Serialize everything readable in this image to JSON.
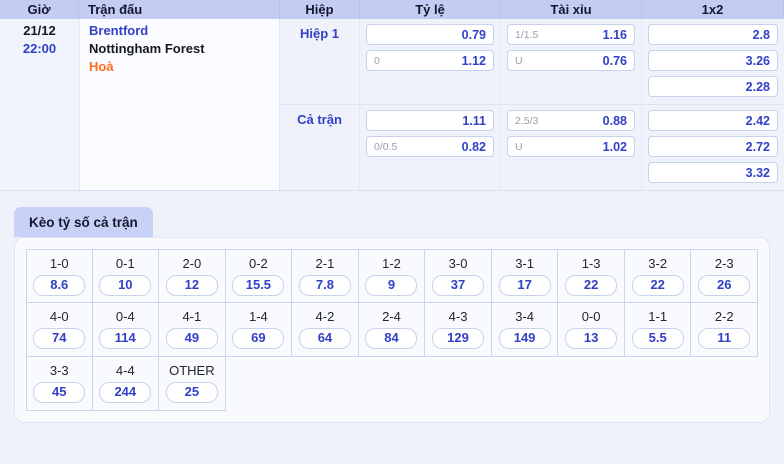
{
  "colors": {
    "header_bg": "#c3cdf4",
    "accent_blue": "#3140c6",
    "accent_orange": "#fc6c20",
    "line_gray": "#99a0ae",
    "page_bg": "#eef2fa",
    "tab_bg": "#c8d2f7"
  },
  "table": {
    "headers": {
      "time": "Giờ",
      "match": "Trận đấu",
      "period": "Hiệp",
      "handicap": "Tỷ lệ",
      "over_under": "Tài xỉu",
      "one_x_two": "1x2"
    },
    "row": {
      "date": "21/12",
      "time": "22:00",
      "home": "Brentford",
      "away": "Nottingham Forest",
      "draw": "Hoà",
      "sections": [
        {
          "label": "Hiệp 1",
          "handicap": [
            {
              "line": "",
              "odds": "0.79"
            },
            {
              "line": "0",
              "odds": "1.12"
            }
          ],
          "over_under": [
            {
              "line": "1/1.5",
              "odds": "1.16"
            },
            {
              "line": "U",
              "odds": "0.76"
            }
          ],
          "one_x_two": [
            "2.8",
            "3.26",
            "2.28"
          ]
        },
        {
          "label": "Cả trận",
          "handicap": [
            {
              "line": "",
              "odds": "1.11"
            },
            {
              "line": "0/0.5",
              "odds": "0.82"
            }
          ],
          "over_under": [
            {
              "line": "2.5/3",
              "odds": "0.88"
            },
            {
              "line": "U",
              "odds": "1.02"
            }
          ],
          "one_x_two": [
            "2.42",
            "2.72",
            "3.32"
          ]
        }
      ]
    }
  },
  "score_tab": {
    "label": "Kèo tỷ số cả trận"
  },
  "score_grid": {
    "cells": [
      {
        "score": "1-0",
        "odds": "8.6"
      },
      {
        "score": "0-1",
        "odds": "10"
      },
      {
        "score": "2-0",
        "odds": "12"
      },
      {
        "score": "0-2",
        "odds": "15.5"
      },
      {
        "score": "2-1",
        "odds": "7.8"
      },
      {
        "score": "1-2",
        "odds": "9"
      },
      {
        "score": "3-0",
        "odds": "37"
      },
      {
        "score": "3-1",
        "odds": "17"
      },
      {
        "score": "1-3",
        "odds": "22"
      },
      {
        "score": "3-2",
        "odds": "22"
      },
      {
        "score": "2-3",
        "odds": "26"
      },
      {
        "score": "4-0",
        "odds": "74"
      },
      {
        "score": "0-4",
        "odds": "114"
      },
      {
        "score": "4-1",
        "odds": "49"
      },
      {
        "score": "1-4",
        "odds": "69"
      },
      {
        "score": "4-2",
        "odds": "64"
      },
      {
        "score": "2-4",
        "odds": "84"
      },
      {
        "score": "4-3",
        "odds": "129"
      },
      {
        "score": "3-4",
        "odds": "149"
      },
      {
        "score": "0-0",
        "odds": "13"
      },
      {
        "score": "1-1",
        "odds": "5.5"
      },
      {
        "score": "2-2",
        "odds": "11"
      },
      {
        "score": "3-3",
        "odds": "45"
      },
      {
        "score": "4-4",
        "odds": "244"
      },
      {
        "score": "OTHER",
        "odds": "25"
      }
    ]
  }
}
